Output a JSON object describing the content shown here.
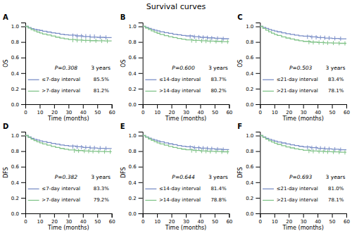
{
  "title": "Survival curves",
  "chart_data": [
    {
      "type": "step",
      "title": "A",
      "xlabel": "Time (months)",
      "ylabel": "OS",
      "xlim": [
        0,
        60
      ],
      "ylim": [
        0.0,
        1.05
      ],
      "xticks": [
        0,
        10,
        20,
        30,
        40,
        50,
        60
      ],
      "yticks": [
        {
          "value": 0.0,
          "label": "0.0"
        },
        0.2,
        0.4,
        0.6,
        0.8,
        {
          "value": 1.0,
          "label": "1.0"
        }
      ],
      "grid": false,
      "legend": "lower left",
      "annotations": [
        "P=0.308",
        "3 years"
      ],
      "series": [
        {
          "name": "≤7-day interval",
          "color": "#7b8fc7",
          "summary": {
            "value": 85.5,
            "label": "85.5%"
          },
          "x": [
            0,
            2,
            4,
            6,
            8,
            10,
            12,
            15,
            18,
            21,
            24,
            27,
            30,
            35,
            40,
            45,
            50,
            55,
            60
          ],
          "values": [
            1.0,
            0.985,
            0.972,
            0.962,
            0.955,
            0.948,
            0.938,
            0.928,
            0.918,
            0.91,
            0.9,
            0.893,
            0.888,
            0.878,
            0.87,
            0.863,
            0.86,
            0.857,
            0.855
          ],
          "censor_x": [
            33,
            36,
            39,
            42,
            45,
            48,
            52,
            56
          ],
          "censor_values": [
            0.882,
            0.878,
            0.876,
            0.874,
            0.872,
            0.87,
            0.862,
            0.858
          ]
        },
        {
          "name": ">7-day interval",
          "color": "#82c48a",
          "summary": {
            "value": 81.2,
            "label": "81.2%"
          },
          "x": [
            0,
            2,
            4,
            6,
            8,
            10,
            12,
            15,
            18,
            21,
            24,
            27,
            30,
            35,
            40,
            45,
            50,
            55,
            60
          ],
          "values": [
            1.0,
            0.978,
            0.958,
            0.942,
            0.928,
            0.915,
            0.902,
            0.89,
            0.876,
            0.862,
            0.85,
            0.84,
            0.832,
            0.825,
            0.82,
            0.817,
            0.815,
            0.813,
            0.812
          ],
          "censor_x": [
            33,
            36,
            39,
            42,
            45,
            49,
            53,
            57
          ],
          "censor_values": [
            0.824,
            0.822,
            0.82,
            0.819,
            0.818,
            0.816,
            0.814,
            0.812
          ]
        }
      ]
    },
    {
      "type": "step",
      "title": "B",
      "xlabel": "Time (months)",
      "ylabel": "OS",
      "xlim": [
        0,
        60
      ],
      "ylim": [
        0.0,
        1.05
      ],
      "xticks": [
        0,
        10,
        20,
        30,
        40,
        50,
        60
      ],
      "yticks": [
        {
          "value": 0.0,
          "label": "0.0"
        },
        0.2,
        0.4,
        0.6,
        0.8,
        {
          "value": 1.0,
          "label": "1.0"
        }
      ],
      "grid": false,
      "legend": "lower left",
      "annotations": [
        "P=0.600",
        "3 years"
      ],
      "series": [
        {
          "name": "≤14-day interval",
          "color": "#7b8fc7",
          "summary": {
            "value": 83.7,
            "label": "83.7%"
          },
          "x": [
            0,
            2,
            4,
            6,
            8,
            10,
            12,
            15,
            18,
            21,
            24,
            27,
            30,
            35,
            40,
            45,
            50,
            55,
            60
          ],
          "values": [
            1.0,
            0.988,
            0.975,
            0.963,
            0.952,
            0.942,
            0.932,
            0.92,
            0.91,
            0.9,
            0.892,
            0.884,
            0.878,
            0.868,
            0.86,
            0.853,
            0.847,
            0.842,
            0.837
          ],
          "censor_x": [
            33,
            36,
            39,
            42,
            45,
            48,
            52,
            56
          ],
          "censor_values": [
            0.87,
            0.866,
            0.862,
            0.858,
            0.854,
            0.85,
            0.846,
            0.841
          ]
        },
        {
          "name": ">14-day interval",
          "color": "#82c48a",
          "summary": {
            "value": 80.2,
            "label": "80.2%"
          },
          "x": [
            0,
            2,
            4,
            6,
            8,
            10,
            12,
            15,
            18,
            21,
            24,
            27,
            30,
            35,
            40,
            45,
            50,
            55,
            60
          ],
          "values": [
            1.0,
            0.98,
            0.96,
            0.942,
            0.926,
            0.912,
            0.898,
            0.882,
            0.868,
            0.856,
            0.845,
            0.836,
            0.828,
            0.82,
            0.815,
            0.811,
            0.808,
            0.805,
            0.802
          ],
          "censor_x": [
            34,
            37,
            41,
            44,
            47,
            51,
            55,
            59
          ],
          "censor_values": [
            0.819,
            0.816,
            0.814,
            0.812,
            0.81,
            0.808,
            0.806,
            0.803
          ]
        }
      ]
    },
    {
      "type": "step",
      "title": "C",
      "xlabel": "Time (months)",
      "ylabel": "OS",
      "xlim": [
        0,
        60
      ],
      "ylim": [
        0.0,
        1.05
      ],
      "xticks": [
        0,
        10,
        20,
        30,
        40,
        50,
        60
      ],
      "yticks": [
        {
          "value": 0.0,
          "label": "0.0"
        },
        0.2,
        0.4,
        0.6,
        0.8,
        {
          "value": 1.0,
          "label": "1.0"
        }
      ],
      "grid": false,
      "legend": "lower left",
      "annotations": [
        "P=0.503",
        "3 years"
      ],
      "series": [
        {
          "name": "≤21-day interval",
          "color": "#7b8fc7",
          "summary": {
            "value": 83.4,
            "label": "83.4%"
          },
          "x": [
            0,
            2,
            4,
            6,
            8,
            10,
            12,
            15,
            18,
            21,
            24,
            27,
            30,
            35,
            40,
            45,
            50,
            55,
            60
          ],
          "values": [
            1.0,
            0.988,
            0.974,
            0.961,
            0.95,
            0.94,
            0.93,
            0.918,
            0.907,
            0.897,
            0.888,
            0.88,
            0.874,
            0.865,
            0.857,
            0.85,
            0.845,
            0.84,
            0.834
          ],
          "censor_x": [
            33,
            36,
            39,
            42,
            45,
            48,
            52,
            56
          ],
          "censor_values": [
            0.867,
            0.863,
            0.86,
            0.857,
            0.854,
            0.851,
            0.847,
            0.843
          ]
        },
        {
          "name": ">21-day interval",
          "color": "#82c48a",
          "summary": {
            "value": 78.1,
            "label": "78.1%"
          },
          "x": [
            0,
            2,
            4,
            6,
            8,
            10,
            12,
            15,
            18,
            21,
            24,
            27,
            30,
            35,
            40,
            45,
            50,
            55,
            60
          ],
          "values": [
            1.0,
            0.975,
            0.952,
            0.932,
            0.914,
            0.898,
            0.883,
            0.866,
            0.851,
            0.838,
            0.826,
            0.816,
            0.808,
            0.799,
            0.793,
            0.789,
            0.786,
            0.783,
            0.781
          ],
          "censor_x": [
            34,
            37,
            41,
            44,
            47,
            51,
            55,
            59
          ],
          "censor_values": [
            0.798,
            0.795,
            0.793,
            0.791,
            0.789,
            0.787,
            0.784,
            0.782
          ]
        }
      ]
    },
    {
      "type": "step",
      "title": "D",
      "xlabel": "Time (months)",
      "ylabel": "DFS",
      "xlim": [
        0,
        60
      ],
      "ylim": [
        0.0,
        1.05
      ],
      "xticks": [
        0,
        10,
        20,
        30,
        40,
        50,
        60
      ],
      "yticks": [
        {
          "value": 0.0,
          "label": "0.0"
        },
        0.2,
        0.4,
        0.6,
        0.8,
        {
          "value": 1.0,
          "label": "1.0"
        }
      ],
      "grid": false,
      "legend": "lower left",
      "annotations": [
        "P=0.382",
        "3 years"
      ],
      "series": [
        {
          "name": "≤7-day interval",
          "color": "#7b8fc7",
          "summary": {
            "value": 83.3,
            "label": "83.3%"
          },
          "x": [
            0,
            2,
            4,
            6,
            8,
            10,
            12,
            15,
            18,
            21,
            24,
            27,
            30,
            35,
            40,
            45,
            50,
            55,
            60
          ],
          "values": [
            1.0,
            0.982,
            0.965,
            0.952,
            0.942,
            0.932,
            0.922,
            0.91,
            0.9,
            0.89,
            0.88,
            0.872,
            0.866,
            0.856,
            0.848,
            0.841,
            0.836,
            0.834,
            0.833
          ],
          "censor_x": [
            33,
            36,
            39,
            42,
            45,
            48,
            52,
            56
          ],
          "censor_values": [
            0.858,
            0.854,
            0.851,
            0.848,
            0.845,
            0.842,
            0.838,
            0.835
          ]
        },
        {
          "name": ">7-day interval",
          "color": "#82c48a",
          "summary": {
            "value": 79.2,
            "label": "79.2%"
          },
          "x": [
            0,
            2,
            4,
            6,
            8,
            10,
            12,
            15,
            18,
            21,
            24,
            27,
            30,
            35,
            40,
            45,
            50,
            55,
            60
          ],
          "values": [
            1.0,
            0.976,
            0.954,
            0.936,
            0.92,
            0.906,
            0.892,
            0.876,
            0.861,
            0.847,
            0.835,
            0.824,
            0.816,
            0.808,
            0.802,
            0.798,
            0.796,
            0.794,
            0.792
          ],
          "censor_x": [
            34,
            37,
            41,
            44,
            47,
            51,
            55,
            59
          ],
          "censor_values": [
            0.807,
            0.804,
            0.802,
            0.8,
            0.798,
            0.796,
            0.794,
            0.793
          ]
        }
      ]
    },
    {
      "type": "step",
      "title": "E",
      "xlabel": "Time (months)",
      "ylabel": "DFS",
      "xlim": [
        0,
        60
      ],
      "ylim": [
        0.0,
        1.05
      ],
      "xticks": [
        0,
        10,
        20,
        30,
        40,
        50,
        60
      ],
      "yticks": [
        {
          "value": 0.0,
          "label": "0.0"
        },
        0.2,
        0.4,
        0.6,
        0.8,
        {
          "value": 1.0,
          "label": "1.0"
        }
      ],
      "grid": false,
      "legend": "lower left",
      "annotations": [
        "P=0.644",
        "3 years"
      ],
      "series": [
        {
          "name": "≤14-day interval",
          "color": "#7b8fc7",
          "summary": {
            "value": 81.4,
            "label": "81.4%"
          },
          "x": [
            0,
            2,
            4,
            6,
            8,
            10,
            12,
            15,
            18,
            21,
            24,
            27,
            30,
            35,
            40,
            45,
            50,
            55,
            60
          ],
          "values": [
            1.0,
            0.984,
            0.968,
            0.954,
            0.942,
            0.93,
            0.919,
            0.906,
            0.894,
            0.883,
            0.872,
            0.863,
            0.856,
            0.846,
            0.838,
            0.831,
            0.826,
            0.82,
            0.814
          ],
          "censor_x": [
            33,
            36,
            39,
            42,
            45,
            48,
            52,
            56
          ],
          "censor_values": [
            0.848,
            0.844,
            0.841,
            0.838,
            0.834,
            0.83,
            0.825,
            0.82
          ]
        },
        {
          "name": ">14-day interval",
          "color": "#82c48a",
          "summary": {
            "value": 78.8,
            "label": "78.8%"
          },
          "x": [
            0,
            2,
            4,
            6,
            8,
            10,
            12,
            15,
            18,
            21,
            24,
            27,
            30,
            35,
            40,
            45,
            50,
            55,
            60
          ],
          "values": [
            1.0,
            0.978,
            0.957,
            0.938,
            0.922,
            0.907,
            0.893,
            0.876,
            0.861,
            0.848,
            0.836,
            0.826,
            0.818,
            0.809,
            0.803,
            0.798,
            0.795,
            0.792,
            0.788
          ],
          "censor_x": [
            34,
            37,
            41,
            44,
            47,
            51,
            55,
            59
          ],
          "censor_values": [
            0.808,
            0.805,
            0.802,
            0.8,
            0.797,
            0.795,
            0.792,
            0.789
          ]
        }
      ]
    },
    {
      "type": "step",
      "title": "F",
      "xlabel": "Time (months)",
      "ylabel": "DFS",
      "xlim": [
        0,
        60
      ],
      "ylim": [
        0.0,
        1.05
      ],
      "xticks": [
        0,
        10,
        20,
        30,
        40,
        50,
        60
      ],
      "yticks": [
        {
          "value": 0.0,
          "label": "0.0"
        },
        0.2,
        0.4,
        0.6,
        0.8,
        {
          "value": 1.0,
          "label": "1.0"
        }
      ],
      "grid": false,
      "legend": "lower left",
      "annotations": [
        "P=0.693",
        "3 years"
      ],
      "series": [
        {
          "name": "≤21-day interval",
          "color": "#7b8fc7",
          "summary": {
            "value": 81.0,
            "label": "81.0%"
          },
          "x": [
            0,
            2,
            4,
            6,
            8,
            10,
            12,
            15,
            18,
            21,
            24,
            27,
            30,
            35,
            40,
            45,
            50,
            55,
            60
          ],
          "values": [
            1.0,
            0.983,
            0.966,
            0.952,
            0.94,
            0.929,
            0.918,
            0.905,
            0.893,
            0.882,
            0.872,
            0.862,
            0.855,
            0.845,
            0.837,
            0.83,
            0.824,
            0.818,
            0.81
          ],
          "censor_x": [
            33,
            36,
            39,
            42,
            45,
            48,
            52,
            56
          ],
          "censor_values": [
            0.847,
            0.843,
            0.84,
            0.837,
            0.833,
            0.829,
            0.824,
            0.819
          ]
        },
        {
          "name": ">21-day interval",
          "color": "#82c48a",
          "summary": {
            "value": 78.1,
            "label": "78.1%"
          },
          "x": [
            0,
            2,
            4,
            6,
            8,
            10,
            12,
            15,
            18,
            21,
            24,
            27,
            30,
            35,
            40,
            45,
            50,
            55,
            60
          ],
          "values": [
            1.0,
            0.976,
            0.954,
            0.934,
            0.917,
            0.901,
            0.887,
            0.87,
            0.855,
            0.842,
            0.83,
            0.82,
            0.812,
            0.803,
            0.797,
            0.793,
            0.79,
            0.787,
            0.781
          ],
          "censor_x": [
            34,
            37,
            41,
            44,
            47,
            51,
            55,
            59
          ],
          "censor_values": [
            0.802,
            0.799,
            0.797,
            0.795,
            0.792,
            0.79,
            0.787,
            0.784
          ]
        }
      ]
    }
  ]
}
